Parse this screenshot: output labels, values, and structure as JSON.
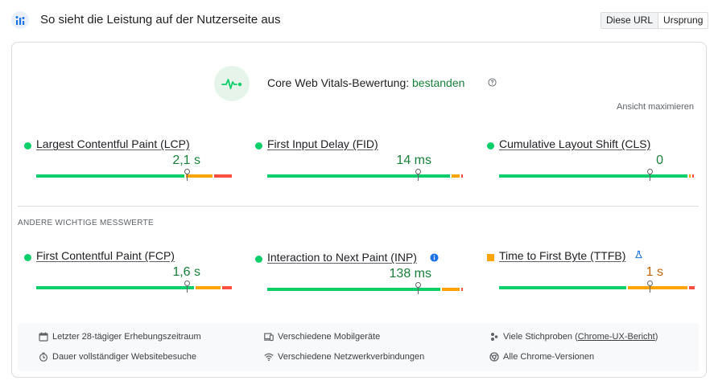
{
  "header": {
    "title": "So sieht die Leistung auf der Nutzerseite aus",
    "toggle": [
      "Diese URL",
      "Ursprung"
    ]
  },
  "cwv": {
    "label": "Core Web Vitals-Bewertung: ",
    "status": "bestanden",
    "expand": "Ansicht maximieren"
  },
  "core_metrics": [
    {
      "name": "Largest Contentful Paint (LCP)",
      "value": "2,1 s",
      "good": 0.77,
      "ni": 0.14,
      "poor": 0.09,
      "marker": 0.77
    },
    {
      "name": "First Input Delay (FID)",
      "value": "14 ms",
      "good": 0.95,
      "ni": 0.04,
      "poor": 0.01,
      "marker": 0.77
    },
    {
      "name": "Cumulative Layout Shift (CLS)",
      "value": "0",
      "good": 0.98,
      "ni": 0.01,
      "poor": 0.01,
      "marker": 0.77
    }
  ],
  "other_label": "ANDERE WICHTIGE MESSWERTE",
  "other_metrics": [
    {
      "name": "First Contentful Paint (FCP)",
      "value": "1,6 s",
      "good": 0.82,
      "ni": 0.13,
      "poor": 0.05,
      "marker": 0.77
    },
    {
      "name": "Interaction to Next Paint (INP)",
      "value": "138 ms",
      "good": 0.9,
      "ni": 0.09,
      "poor": 0.01,
      "marker": 0.77
    },
    {
      "name": "Time to First Byte (TTFB)",
      "value": "1 s",
      "good": 0.66,
      "ni": 0.31,
      "poor": 0.03,
      "marker": 0.77
    }
  ],
  "footer": {
    "items": [
      {
        "icon": "calendar-icon",
        "text": "Letzter 28-tägiger Erhebungszeitraum"
      },
      {
        "icon": "devices-icon",
        "text": "Verschiedene Mobilgeräte"
      },
      {
        "icon": "people-icon",
        "text": "Viele Stichproben (",
        "link": "Chrome-UX-Bericht",
        "suffix": ")"
      },
      {
        "icon": "timer-icon",
        "text": "Dauer vollständiger Websitebesuche"
      },
      {
        "icon": "wifi-icon",
        "text": "Verschiedene Netzwerkverbindungen"
      },
      {
        "icon": "chrome-icon",
        "text": "Alle Chrome-Versionen"
      }
    ]
  },
  "colors": {
    "good": "#0cce6b",
    "needs_improvement": "#ffa400",
    "poor": "#ff4e42",
    "pass_text": "#188038",
    "warn_text": "#c26401"
  }
}
